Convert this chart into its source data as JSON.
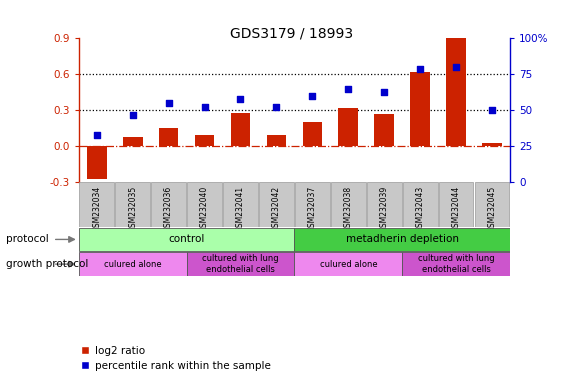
{
  "title": "GDS3179 / 18993",
  "samples": [
    "GSM232034",
    "GSM232035",
    "GSM232036",
    "GSM232040",
    "GSM232041",
    "GSM232042",
    "GSM232037",
    "GSM232038",
    "GSM232039",
    "GSM232043",
    "GSM232044",
    "GSM232045"
  ],
  "log2_ratio": [
    -0.27,
    0.08,
    0.15,
    0.09,
    0.28,
    0.09,
    0.2,
    0.32,
    0.27,
    0.62,
    0.9,
    0.03
  ],
  "percentile_rank": [
    33,
    47,
    55,
    52,
    58,
    52,
    60,
    65,
    63,
    79,
    80,
    50
  ],
  "bar_color": "#cc2200",
  "dot_color": "#0000cc",
  "left_ylim": [
    -0.3,
    0.9
  ],
  "left_yticks": [
    -0.3,
    0.0,
    0.3,
    0.6,
    0.9
  ],
  "right_ylim": [
    0,
    100
  ],
  "right_yticks": [
    0,
    25,
    50,
    75,
    100
  ],
  "right_yticklabels": [
    "0",
    "25",
    "50",
    "75",
    "100%"
  ],
  "hlines": [
    0.3,
    0.6
  ],
  "zero_line_color": "#cc2200",
  "protocol_label": "protocol",
  "growth_label": "growth protocol",
  "protocol_groups": [
    {
      "label": "control",
      "start": 0,
      "end": 6,
      "color": "#aaffaa"
    },
    {
      "label": "metadherin depletion",
      "start": 6,
      "end": 12,
      "color": "#44cc44"
    }
  ],
  "growth_groups": [
    {
      "label": "culured alone",
      "start": 0,
      "end": 3,
      "color": "#ee88ee"
    },
    {
      "label": "cultured with lung\nendothelial cells",
      "start": 3,
      "end": 6,
      "color": "#cc55cc"
    },
    {
      "label": "culured alone",
      "start": 6,
      "end": 9,
      "color": "#ee88ee"
    },
    {
      "label": "cultured with lung\nendothelial cells",
      "start": 9,
      "end": 12,
      "color": "#cc55cc"
    }
  ],
  "legend_bar_label": "log2 ratio",
  "legend_dot_label": "percentile rank within the sample",
  "tick_bg_color": "#c8c8c8",
  "title_color": "#000000"
}
